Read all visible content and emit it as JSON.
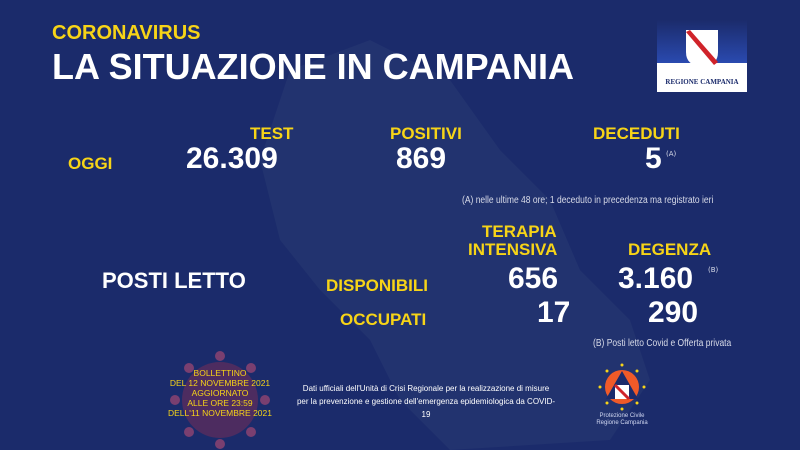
{
  "header": {
    "kicker": "CORONAVIRUS",
    "title": "LA SITUAZIONE IN CAMPANIA",
    "logo_text": "REGIONE CAMPANIA"
  },
  "today": {
    "label": "OGGI",
    "test_label": "TEST",
    "test_value": "26.309",
    "positivi_label": "POSITIVI",
    "positivi_value": "869",
    "deceduti_label": "DECEDUTI",
    "deceduti_value": "5",
    "deceduti_note_mark": "(A)",
    "note_a": "(A) nelle ultime 48 ore; 1 deceduto in precedenza ma registrato ieri"
  },
  "beds": {
    "label": "POSTI LETTO",
    "ti_label_1": "TERAPIA",
    "ti_label_2": "INTENSIVA",
    "degenza_label": "DEGENZA",
    "disponibili_label": "DISPONIBILI",
    "occupati_label": "OCCUPATI",
    "ti_disponibili": "656",
    "ti_occupati": "17",
    "degenza_disponibili": "3.160",
    "degenza_note_mark": "(B)",
    "degenza_occupati": "290",
    "note_b": "(B) Posti letto Covid e Offerta privata"
  },
  "bulletin": [
    "BOLLETTINO",
    "DEL 12 NOVEMBRE 2021",
    "AGGIORNATO",
    "ALLE ORE 23:59",
    "DELL'11 NOVEMBRE 2021"
  ],
  "footer": {
    "line1": "Dati ufficiali dell'Unità di Crisi Regionale per la realizzazione di misure",
    "line2": "per la prevenzione e gestione dell'emergenza epidemiologica da COVID-19"
  },
  "protezione": {
    "line1": "Protezione Civile",
    "line2": "Regione Campania"
  },
  "colors": {
    "background": "#1b2b6b",
    "accent": "#f7d417",
    "map": "#22336f"
  }
}
